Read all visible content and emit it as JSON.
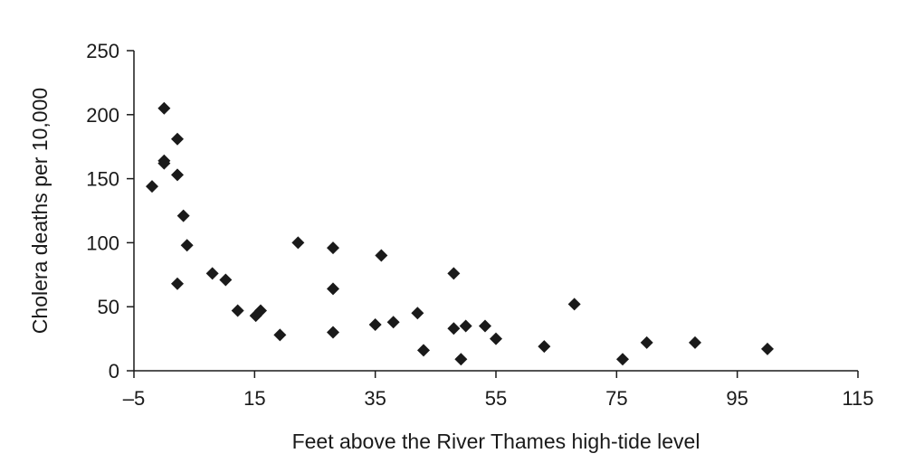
{
  "chart_data": {
    "type": "scatter",
    "title": "",
    "xlabel": "Feet above the River Thames high-tide level",
    "ylabel": "Cholera deaths per 10,000",
    "xlim": [
      -5,
      115
    ],
    "ylim": [
      0,
      250
    ],
    "xticks": [
      -5,
      15,
      35,
      55,
      75,
      95,
      115
    ],
    "xtick_labels": [
      "–5",
      "15",
      "35",
      "55",
      "75",
      "95",
      "115"
    ],
    "yticks": [
      0,
      50,
      100,
      150,
      200,
      250
    ],
    "ytick_labels": [
      "0",
      "50",
      "100",
      "150",
      "200",
      "250"
    ],
    "grid": false,
    "marker": "diamond",
    "marker_color": "#1a1a1a",
    "points": [
      {
        "x": -2.0,
        "y": 144
      },
      {
        "x": 0.0,
        "y": 205
      },
      {
        "x": 0.0,
        "y": 164
      },
      {
        "x": 0.0,
        "y": 162
      },
      {
        "x": 2.2,
        "y": 181
      },
      {
        "x": 2.2,
        "y": 153
      },
      {
        "x": 3.2,
        "y": 121
      },
      {
        "x": 3.8,
        "y": 98
      },
      {
        "x": 2.2,
        "y": 68
      },
      {
        "x": 8.0,
        "y": 76
      },
      {
        "x": 10.2,
        "y": 71
      },
      {
        "x": 12.2,
        "y": 47
      },
      {
        "x": 15.2,
        "y": 43
      },
      {
        "x": 16.0,
        "y": 47
      },
      {
        "x": 19.2,
        "y": 28
      },
      {
        "x": 22.2,
        "y": 100
      },
      {
        "x": 28.0,
        "y": 96
      },
      {
        "x": 28.0,
        "y": 64
      },
      {
        "x": 28.0,
        "y": 30
      },
      {
        "x": 35.0,
        "y": 36
      },
      {
        "x": 36.0,
        "y": 90
      },
      {
        "x": 38.0,
        "y": 38
      },
      {
        "x": 42.0,
        "y": 45
      },
      {
        "x": 43.0,
        "y": 16
      },
      {
        "x": 48.0,
        "y": 76
      },
      {
        "x": 48.0,
        "y": 33
      },
      {
        "x": 49.2,
        "y": 9
      },
      {
        "x": 50.0,
        "y": 35
      },
      {
        "x": 53.2,
        "y": 35
      },
      {
        "x": 55.0,
        "y": 25
      },
      {
        "x": 63.0,
        "y": 19
      },
      {
        "x": 68.0,
        "y": 52
      },
      {
        "x": 76.0,
        "y": 9
      },
      {
        "x": 80.0,
        "y": 22
      },
      {
        "x": 88.0,
        "y": 22
      },
      {
        "x": 100.0,
        "y": 17
      }
    ]
  }
}
